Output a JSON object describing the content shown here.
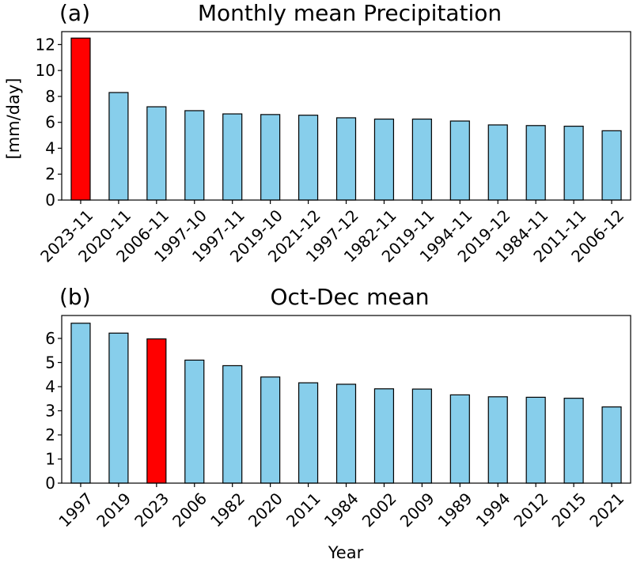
{
  "chart_data": [
    {
      "type": "bar",
      "panel_label": "(a)",
      "title": "Monthly mean Precipitation",
      "ylabel": "[mm/day]",
      "xlabel": "",
      "ylim": [
        0,
        13
      ],
      "yticks": [
        0,
        2,
        4,
        6,
        8,
        10,
        12
      ],
      "categories": [
        "2023-11",
        "2020-11",
        "2006-11",
        "1997-10",
        "1997-11",
        "2019-10",
        "2021-12",
        "1997-12",
        "1982-11",
        "2019-11",
        "1994-11",
        "2019-12",
        "1984-11",
        "2011-11",
        "2006-12"
      ],
      "values": [
        12.5,
        8.3,
        7.2,
        6.9,
        6.65,
        6.6,
        6.55,
        6.35,
        6.25,
        6.25,
        6.1,
        5.8,
        5.75,
        5.7,
        5.35
      ],
      "highlight_index": 0,
      "bar_color": "#87CEEB",
      "highlight_color": "#FF0000",
      "highlight_label_color": "#FF0000",
      "grid": false
    },
    {
      "type": "bar",
      "panel_label": "(b)",
      "title": "Oct-Dec mean",
      "ylabel": "",
      "xlabel": "Year",
      "ylim": [
        0,
        6.95
      ],
      "yticks": [
        0,
        1,
        2,
        3,
        4,
        5,
        6
      ],
      "categories": [
        "1997",
        "2019",
        "2023",
        "2006",
        "1982",
        "2020",
        "2011",
        "1984",
        "2002",
        "2009",
        "1989",
        "1994",
        "2012",
        "2015",
        "2021"
      ],
      "values": [
        6.63,
        6.22,
        5.98,
        5.1,
        4.87,
        4.4,
        4.16,
        4.1,
        3.91,
        3.9,
        3.66,
        3.58,
        3.56,
        3.52,
        3.16
      ],
      "highlight_index": 2,
      "bar_color": "#87CEEB",
      "highlight_color": "#FF0000",
      "highlight_label_color": "#FF0000",
      "grid": false
    }
  ]
}
